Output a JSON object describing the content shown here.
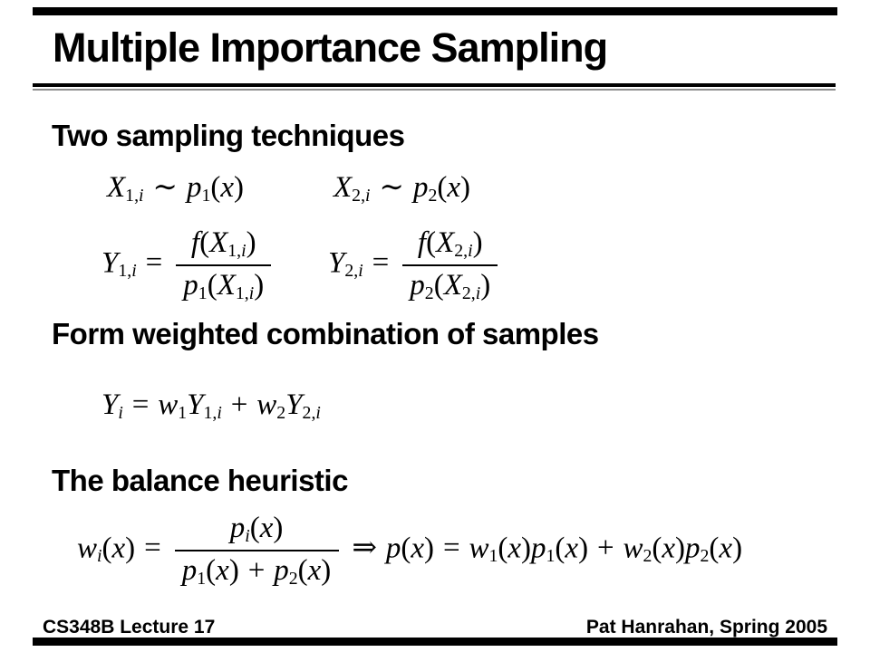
{
  "slide": {
    "title": "Multiple Importance Sampling",
    "headings": {
      "two": "Two sampling techniques",
      "form": "Form weighted combination of samples",
      "balance": "The balance heuristic"
    },
    "footer": {
      "left": "CS348B Lecture 17",
      "right": "Pat Hanrahan, Spring 2005"
    },
    "colors": {
      "foreground": "#000000",
      "background": "#ffffff"
    }
  },
  "math": {
    "x1_sampling": [
      [
        "v",
        "X"
      ],
      [
        "s",
        "1,"
      ],
      [
        "si",
        "i"
      ],
      [
        "o",
        "∼"
      ],
      [
        "v",
        "p"
      ],
      [
        "s",
        "1"
      ],
      [
        "n",
        "("
      ],
      [
        "v",
        "x"
      ],
      [
        "n",
        ")"
      ]
    ],
    "x2_sampling": [
      [
        "v",
        "X"
      ],
      [
        "s",
        "2,"
      ],
      [
        "si",
        "i"
      ],
      [
        "o",
        "∼"
      ],
      [
        "v",
        "p"
      ],
      [
        "s",
        "2"
      ],
      [
        "n",
        "("
      ],
      [
        "v",
        "x"
      ],
      [
        "n",
        ")"
      ]
    ],
    "y1_estimator": [
      [
        "v",
        "Y"
      ],
      [
        "s",
        "1,"
      ],
      [
        "si",
        "i"
      ],
      [
        "o",
        "="
      ],
      [
        "f",
        [
          [
            "v",
            "f"
          ],
          [
            "n",
            "("
          ],
          [
            "v",
            "X"
          ],
          [
            "s",
            "1,"
          ],
          [
            "si",
            "i"
          ],
          [
            "n",
            ")"
          ]
        ],
        [
          [
            "v",
            "p"
          ],
          [
            "s",
            "1"
          ],
          [
            "n",
            "("
          ],
          [
            "v",
            "X"
          ],
          [
            "s",
            "1,"
          ],
          [
            "si",
            "i"
          ],
          [
            "n",
            ")"
          ]
        ]
      ]
    ],
    "y2_estimator": [
      [
        "v",
        "Y"
      ],
      [
        "s",
        "2,"
      ],
      [
        "si",
        "i"
      ],
      [
        "o",
        "="
      ],
      [
        "f",
        [
          [
            "v",
            "f"
          ],
          [
            "n",
            "("
          ],
          [
            "v",
            "X"
          ],
          [
            "s",
            "2,"
          ],
          [
            "si",
            "i"
          ],
          [
            "n",
            ")"
          ]
        ],
        [
          [
            "v",
            "p"
          ],
          [
            "s",
            "2"
          ],
          [
            "n",
            "("
          ],
          [
            "v",
            "X"
          ],
          [
            "s",
            "2,"
          ],
          [
            "si",
            "i"
          ],
          [
            "n",
            ")"
          ]
        ]
      ]
    ],
    "weighted_combination": [
      [
        "v",
        "Y"
      ],
      [
        "si",
        "i"
      ],
      [
        "o",
        "="
      ],
      [
        "v",
        "w"
      ],
      [
        "s",
        "1"
      ],
      [
        "v",
        "Y"
      ],
      [
        "s",
        "1,"
      ],
      [
        "si",
        "i"
      ],
      [
        "o",
        "+"
      ],
      [
        "v",
        "w"
      ],
      [
        "s",
        "2"
      ],
      [
        "v",
        "Y"
      ],
      [
        "s",
        "2,"
      ],
      [
        "si",
        "i"
      ]
    ],
    "balance_heuristic": [
      [
        "v",
        "w"
      ],
      [
        "si",
        "i"
      ],
      [
        "n",
        "("
      ],
      [
        "v",
        "x"
      ],
      [
        "n",
        ")"
      ],
      [
        "o",
        "="
      ],
      [
        "f",
        [
          [
            "v",
            "p"
          ],
          [
            "si",
            "i"
          ],
          [
            "n",
            "("
          ],
          [
            "v",
            "x"
          ],
          [
            "n",
            ")"
          ]
        ],
        [
          [
            "v",
            "p"
          ],
          [
            "s",
            "1"
          ],
          [
            "n",
            "("
          ],
          [
            "v",
            "x"
          ],
          [
            "n",
            ")"
          ],
          [
            "o",
            "+"
          ],
          [
            "v",
            "p"
          ],
          [
            "s",
            "2"
          ],
          [
            "n",
            "("
          ],
          [
            "v",
            "x"
          ],
          [
            "n",
            ")"
          ]
        ]
      ],
      [
        "o",
        "⇒"
      ],
      [
        "v",
        "p"
      ],
      [
        "n",
        "("
      ],
      [
        "v",
        "x"
      ],
      [
        "n",
        ")"
      ],
      [
        "o",
        "="
      ],
      [
        "v",
        "w"
      ],
      [
        "s",
        "1"
      ],
      [
        "n",
        "("
      ],
      [
        "v",
        "x"
      ],
      [
        "n",
        ")"
      ],
      [
        "v",
        "p"
      ],
      [
        "s",
        "1"
      ],
      [
        "n",
        "("
      ],
      [
        "v",
        "x"
      ],
      [
        "n",
        ")"
      ],
      [
        "o",
        "+"
      ],
      [
        "v",
        "w"
      ],
      [
        "s",
        "2"
      ],
      [
        "n",
        "("
      ],
      [
        "v",
        "x"
      ],
      [
        "n",
        ")"
      ],
      [
        "v",
        "p"
      ],
      [
        "s",
        "2"
      ],
      [
        "n",
        "("
      ],
      [
        "v",
        "x"
      ],
      [
        "n",
        ")"
      ]
    ]
  }
}
